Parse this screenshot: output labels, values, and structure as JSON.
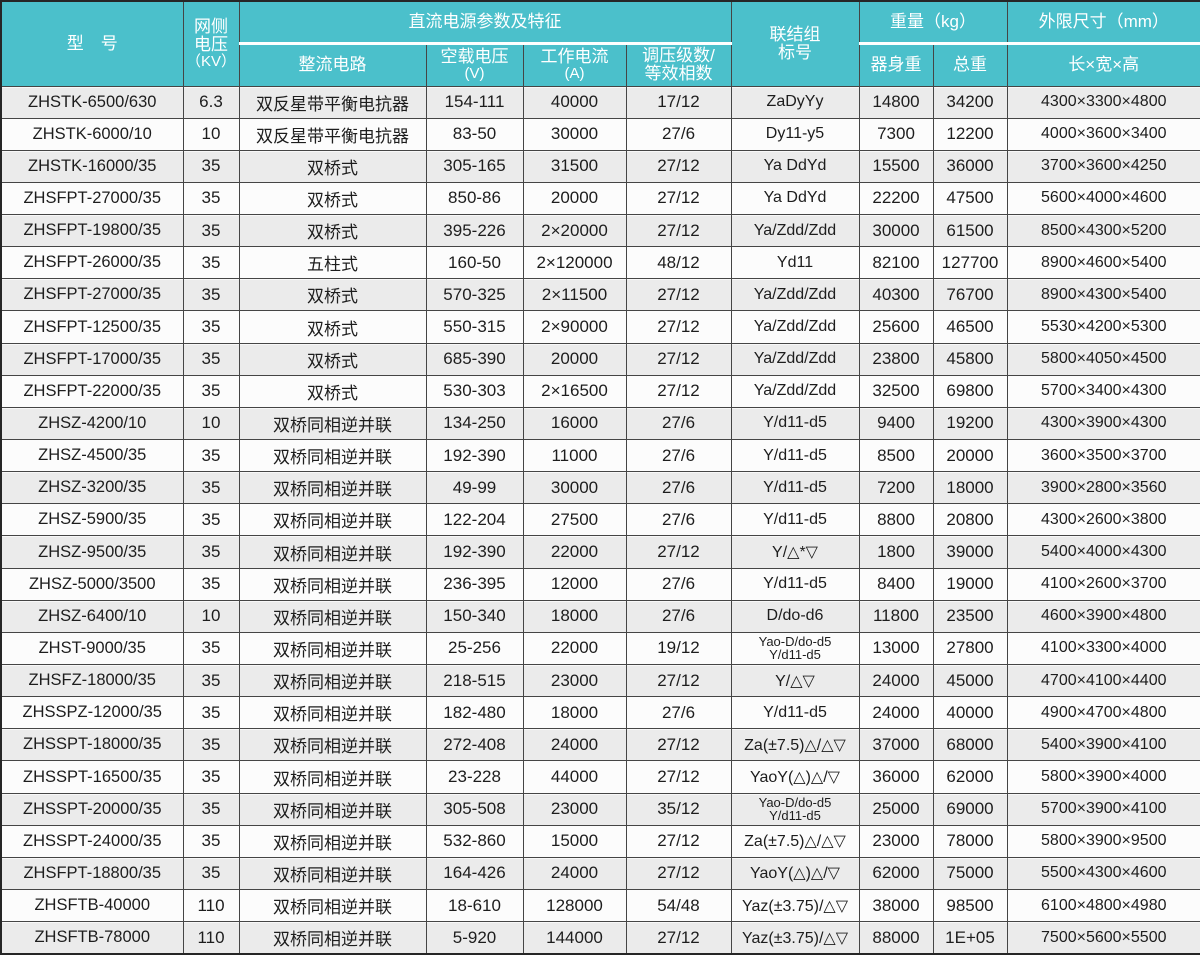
{
  "accent_color": "#4bc0cb",
  "row_stripe_color": "#ebebeb",
  "border_color": "#454545",
  "header": {
    "model": "型　号",
    "kv_lines": [
      "网侧",
      "电压",
      "（KV）"
    ],
    "dc_group": "直流电源参数及特征",
    "rectifier": "整流电路",
    "no_load_lines": [
      "空载电压",
      "(V)"
    ],
    "current_lines": [
      "工作电流",
      "(A)"
    ],
    "stages_lines": [
      "调压级数/",
      "等效相数"
    ],
    "connection_lines": [
      "联结组",
      "标号"
    ],
    "weight_group": "重量（kg）",
    "body_weight": "器身重",
    "total_weight": "总重",
    "dims_group": "外限尺寸（mm）",
    "dims": "长×宽×高"
  },
  "table": {
    "col_keys": [
      "model",
      "kv",
      "rectifier",
      "voltage",
      "current",
      "stages",
      "conn",
      "body",
      "total",
      "dims"
    ],
    "rows": [
      {
        "model": "ZHSTK-6500/630",
        "kv": "6.3",
        "rectifier": "双反星带平衡电抗器",
        "voltage": "154-111",
        "current": "40000",
        "stages": "17/12",
        "conn": "ZaDyYy",
        "body": "14800",
        "total": "34200",
        "dims": "4300×3300×4800"
      },
      {
        "model": "ZHSTK-6000/10",
        "kv": "10",
        "rectifier": "双反星带平衡电抗器",
        "voltage": "83-50",
        "current": "30000",
        "stages": "27/6",
        "conn": "Dy11-y5",
        "body": "7300",
        "total": "12200",
        "dims": "4000×3600×3400"
      },
      {
        "model": "ZHSTK-16000/35",
        "kv": "35",
        "rectifier": "双桥式",
        "voltage": "305-165",
        "current": "31500",
        "stages": "27/12",
        "conn": "Ya DdYd",
        "body": "15500",
        "total": "36000",
        "dims": "3700×3600×4250"
      },
      {
        "model": "ZHSFPT-27000/35",
        "kv": "35",
        "rectifier": "双桥式",
        "voltage": "850-86",
        "current": "20000",
        "stages": "27/12",
        "conn": "Ya DdYd",
        "body": "22200",
        "total": "47500",
        "dims": "5600×4000×4600"
      },
      {
        "model": "ZHSFPT-19800/35",
        "kv": "35",
        "rectifier": "双桥式",
        "voltage": "395-226",
        "current": "2×20000",
        "stages": "27/12",
        "conn": "Ya/Zdd/Zdd",
        "body": "30000",
        "total": "61500",
        "dims": "8500×4300×5200"
      },
      {
        "model": "ZHSFPT-26000/35",
        "kv": "35",
        "rectifier": "五柱式",
        "voltage": "160-50",
        "current": "2×120000",
        "stages": "48/12",
        "conn": "Yd11",
        "body": "82100",
        "total": "127700",
        "dims": "8900×4600×5400"
      },
      {
        "model": "ZHSFPT-27000/35",
        "kv": "35",
        "rectifier": "双桥式",
        "voltage": "570-325",
        "current": "2×11500",
        "stages": "27/12",
        "conn": "Ya/Zdd/Zdd",
        "body": "40300",
        "total": "76700",
        "dims": "8900×4300×5400"
      },
      {
        "model": "ZHSFPT-12500/35",
        "kv": "35",
        "rectifier": "双桥式",
        "voltage": "550-315",
        "current": "2×90000",
        "stages": "27/12",
        "conn": "Ya/Zdd/Zdd",
        "body": "25600",
        "total": "46500",
        "dims": "5530×4200×5300"
      },
      {
        "model": "ZHSFPT-17000/35",
        "kv": "35",
        "rectifier": "双桥式",
        "voltage": "685-390",
        "current": "20000",
        "stages": "27/12",
        "conn": "Ya/Zdd/Zdd",
        "body": "23800",
        "total": "45800",
        "dims": "5800×4050×4500"
      },
      {
        "model": "ZHSFPT-22000/35",
        "kv": "35",
        "rectifier": "双桥式",
        "voltage": "530-303",
        "current": "2×16500",
        "stages": "27/12",
        "conn": "Ya/Zdd/Zdd",
        "body": "32500",
        "total": "69800",
        "dims": "5700×3400×4300"
      },
      {
        "model": "ZHSZ-4200/10",
        "kv": "10",
        "rectifier": "双桥同相逆并联",
        "voltage": "134-250",
        "current": "16000",
        "stages": "27/6",
        "conn": "Y/d11-d5",
        "body": "9400",
        "total": "19200",
        "dims": "4300×3900×4300"
      },
      {
        "model": "ZHSZ-4500/35",
        "kv": "35",
        "rectifier": "双桥同相逆并联",
        "voltage": "192-390",
        "current": "11000",
        "stages": "27/6",
        "conn": "Y/d11-d5",
        "body": "8500",
        "total": "20000",
        "dims": "3600×3500×3700"
      },
      {
        "model": "ZHSZ-3200/35",
        "kv": "35",
        "rectifier": "双桥同相逆并联",
        "voltage": "49-99",
        "current": "30000",
        "stages": "27/6",
        "conn": "Y/d11-d5",
        "body": "7200",
        "total": "18000",
        "dims": "3900×2800×3560"
      },
      {
        "model": "ZHSZ-5900/35",
        "kv": "35",
        "rectifier": "双桥同相逆并联",
        "voltage": "122-204",
        "current": "27500",
        "stages": "27/6",
        "conn": "Y/d11-d5",
        "body": "8800",
        "total": "20800",
        "dims": "4300×2600×3800"
      },
      {
        "model": "ZHSZ-9500/35",
        "kv": "35",
        "rectifier": "双桥同相逆并联",
        "voltage": "192-390",
        "current": "22000",
        "stages": "27/12",
        "conn": "Y/△*▽",
        "body": "1800",
        "total": "39000",
        "dims": "5400×4000×4300"
      },
      {
        "model": "ZHSZ-5000/3500",
        "kv": "35",
        "rectifier": "双桥同相逆并联",
        "voltage": "236-395",
        "current": "12000",
        "stages": "27/6",
        "conn": "Y/d11-d5",
        "body": "8400",
        "total": "19000",
        "dims": "4100×2600×3700"
      },
      {
        "model": "ZHSZ-6400/10",
        "kv": "10",
        "rectifier": "双桥同相逆并联",
        "voltage": "150-340",
        "current": "18000",
        "stages": "27/6",
        "conn": "D/do-d6",
        "body": "11800",
        "total": "23500",
        "dims": "4600×3900×4800"
      },
      {
        "model": "ZHST-9000/35",
        "kv": "35",
        "rectifier": "双桥同相逆并联",
        "voltage": "25-256",
        "current": "22000",
        "stages": "19/12",
        "conn": [
          "Yao-D/do-d5",
          "Y/d11-d5"
        ],
        "body": "13000",
        "total": "27800",
        "dims": "4100×3300×4000"
      },
      {
        "model": "ZHSFZ-18000/35",
        "kv": "35",
        "rectifier": "双桥同相逆并联",
        "voltage": "218-515",
        "current": "23000",
        "stages": "27/12",
        "conn": "Y/△▽",
        "body": "24000",
        "total": "45000",
        "dims": "4700×4100×4400"
      },
      {
        "model": "ZHSSPZ-12000/35",
        "kv": "35",
        "rectifier": "双桥同相逆并联",
        "voltage": "182-480",
        "current": "18000",
        "stages": "27/6",
        "conn": "Y/d11-d5",
        "body": "24000",
        "total": "40000",
        "dims": "4900×4700×4800"
      },
      {
        "model": "ZHSSPT-18000/35",
        "kv": "35",
        "rectifier": "双桥同相逆并联",
        "voltage": "272-408",
        "current": "24000",
        "stages": "27/12",
        "conn": "Za(±7.5)△/△▽",
        "body": "37000",
        "total": "68000",
        "dims": "5400×3900×4100"
      },
      {
        "model": "ZHSSPT-16500/35",
        "kv": "35",
        "rectifier": "双桥同相逆并联",
        "voltage": "23-228",
        "current": "44000",
        "stages": "27/12",
        "conn": "YaoY(△)△/▽",
        "body": "36000",
        "total": "62000",
        "dims": "5800×3900×4000"
      },
      {
        "model": "ZHSSPT-20000/35",
        "kv": "35",
        "rectifier": "双桥同相逆并联",
        "voltage": "305-508",
        "current": "23000",
        "stages": "35/12",
        "conn": [
          "Yao-D/do-d5",
          "Y/d11-d5"
        ],
        "body": "25000",
        "total": "69000",
        "dims": "5700×3900×4100"
      },
      {
        "model": "ZHSSPT-24000/35",
        "kv": "35",
        "rectifier": "双桥同相逆并联",
        "voltage": "532-860",
        "current": "15000",
        "stages": "27/12",
        "conn": "Za(±7.5)△/△▽",
        "body": "23000",
        "total": "78000",
        "dims": "5800×3900×9500"
      },
      {
        "model": "ZHSFPT-18800/35",
        "kv": "35",
        "rectifier": "双桥同相逆并联",
        "voltage": "164-426",
        "current": "24000",
        "stages": "27/12",
        "conn": "YaoY(△)△/▽",
        "body": "62000",
        "total": "75000",
        "dims": "5500×4300×4600"
      },
      {
        "model": "ZHSFTB-40000",
        "kv": "110",
        "rectifier": "双桥同相逆并联",
        "voltage": "18-610",
        "current": "128000",
        "stages": "54/48",
        "conn": "Yaz(±3.75)/△▽",
        "body": "38000",
        "total": "98500",
        "dims": "6100×4800×4980"
      },
      {
        "model": "ZHSFTB-78000",
        "kv": "110",
        "rectifier": "双桥同相逆并联",
        "voltage": "5-920",
        "current": "144000",
        "stages": "27/12",
        "conn": "Yaz(±3.75)/△▽",
        "body": "88000",
        "total": "1E+05",
        "dims": "7500×5600×5500"
      }
    ]
  }
}
